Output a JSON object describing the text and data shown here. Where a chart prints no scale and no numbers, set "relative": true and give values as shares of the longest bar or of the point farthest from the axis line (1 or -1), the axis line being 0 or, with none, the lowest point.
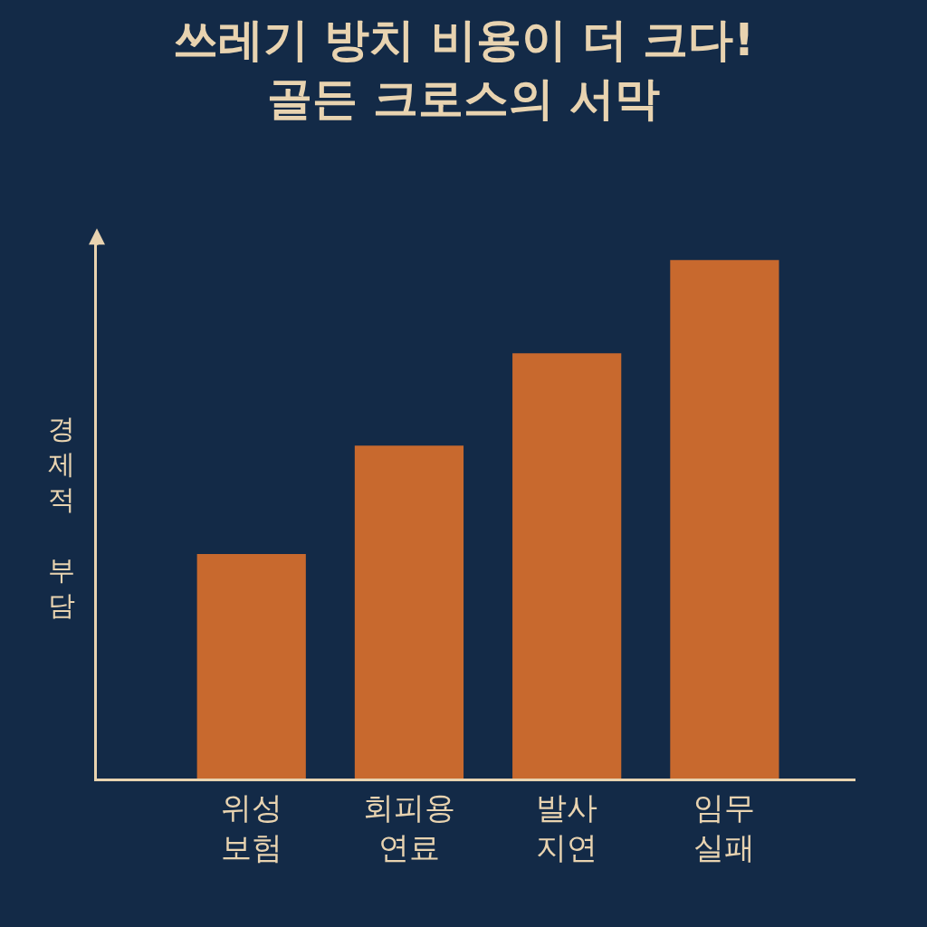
{
  "chart_data": {
    "type": "bar",
    "title": "쓰레기 방치 비용이 더 크다!\n골든 크로스의 서막",
    "ylabel": "경제적 부담",
    "categories": [
      "위성\n보험",
      "회피용\n연료",
      "발사\n지연",
      "임무\n실패"
    ],
    "values": [
      0.433,
      0.642,
      0.82,
      1
    ],
    "color": "#c8692e",
    "relative": true,
    "grid": false,
    "legend": false
  }
}
